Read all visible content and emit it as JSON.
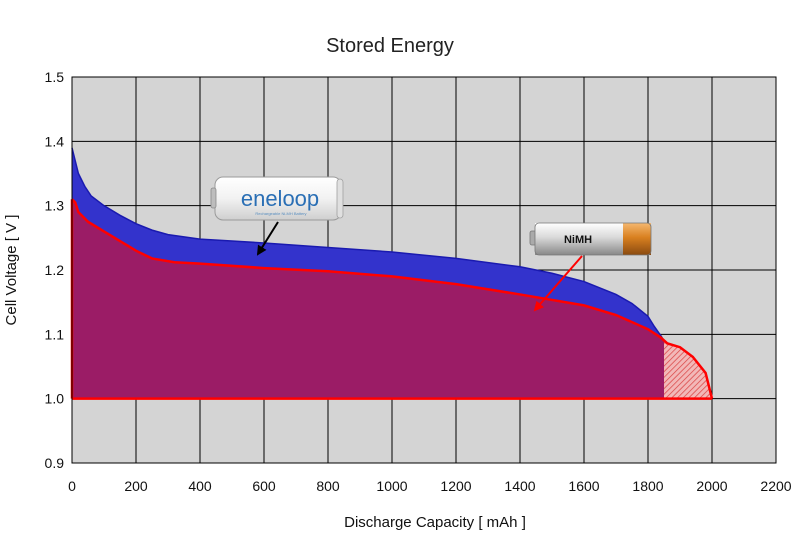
{
  "chart_data": {
    "type": "area",
    "title": "Stored Energy",
    "xlabel": "Discharge Capacity [ mAh ]",
    "ylabel": "Cell Voltage [ V ]",
    "xlim": [
      0,
      2200
    ],
    "ylim": [
      0.9,
      1.5
    ],
    "xticks": [
      "0",
      "200",
      "400",
      "600",
      "800",
      "1000",
      "1200",
      "1400",
      "1600",
      "1800",
      "2000",
      "2200"
    ],
    "yticks": [
      "0.9",
      "1.0",
      "1.1",
      "1.2",
      "1.3",
      "1.4",
      "1.5"
    ],
    "grid": true,
    "series": [
      {
        "name": "eneloop",
        "color": "#3333cc",
        "x": [
          0,
          10,
          20,
          40,
          60,
          100,
          150,
          200,
          250,
          300,
          400,
          500,
          600,
          800,
          1000,
          1200,
          1400,
          1500,
          1600,
          1700,
          1750,
          1800,
          1820,
          1840,
          1850
        ],
        "values": [
          1.39,
          1.37,
          1.35,
          1.33,
          1.315,
          1.3,
          1.285,
          1.272,
          1.262,
          1.255,
          1.248,
          1.245,
          1.242,
          1.235,
          1.228,
          1.218,
          1.205,
          1.195,
          1.182,
          1.162,
          1.148,
          1.128,
          1.112,
          1.098,
          1.09
        ]
      },
      {
        "name": "NiMH",
        "color": "#ff0000",
        "x": [
          0,
          10,
          20,
          50,
          100,
          150,
          200,
          250,
          320,
          400,
          600,
          800,
          1000,
          1200,
          1400,
          1600,
          1700,
          1800,
          1840,
          1860,
          1900,
          1940,
          1980,
          2000
        ],
        "values": [
          1.31,
          1.305,
          1.29,
          1.275,
          1.26,
          1.245,
          1.23,
          1.218,
          1.212,
          1.21,
          1.203,
          1.198,
          1.19,
          1.178,
          1.162,
          1.145,
          1.13,
          1.108,
          1.095,
          1.086,
          1.08,
          1.065,
          1.04,
          1.0
        ]
      }
    ],
    "annotations": [
      {
        "label": "eneloop",
        "subtext": "Rechargeable Ni-MH Battery"
      },
      {
        "label": "NiMH"
      }
    ]
  }
}
